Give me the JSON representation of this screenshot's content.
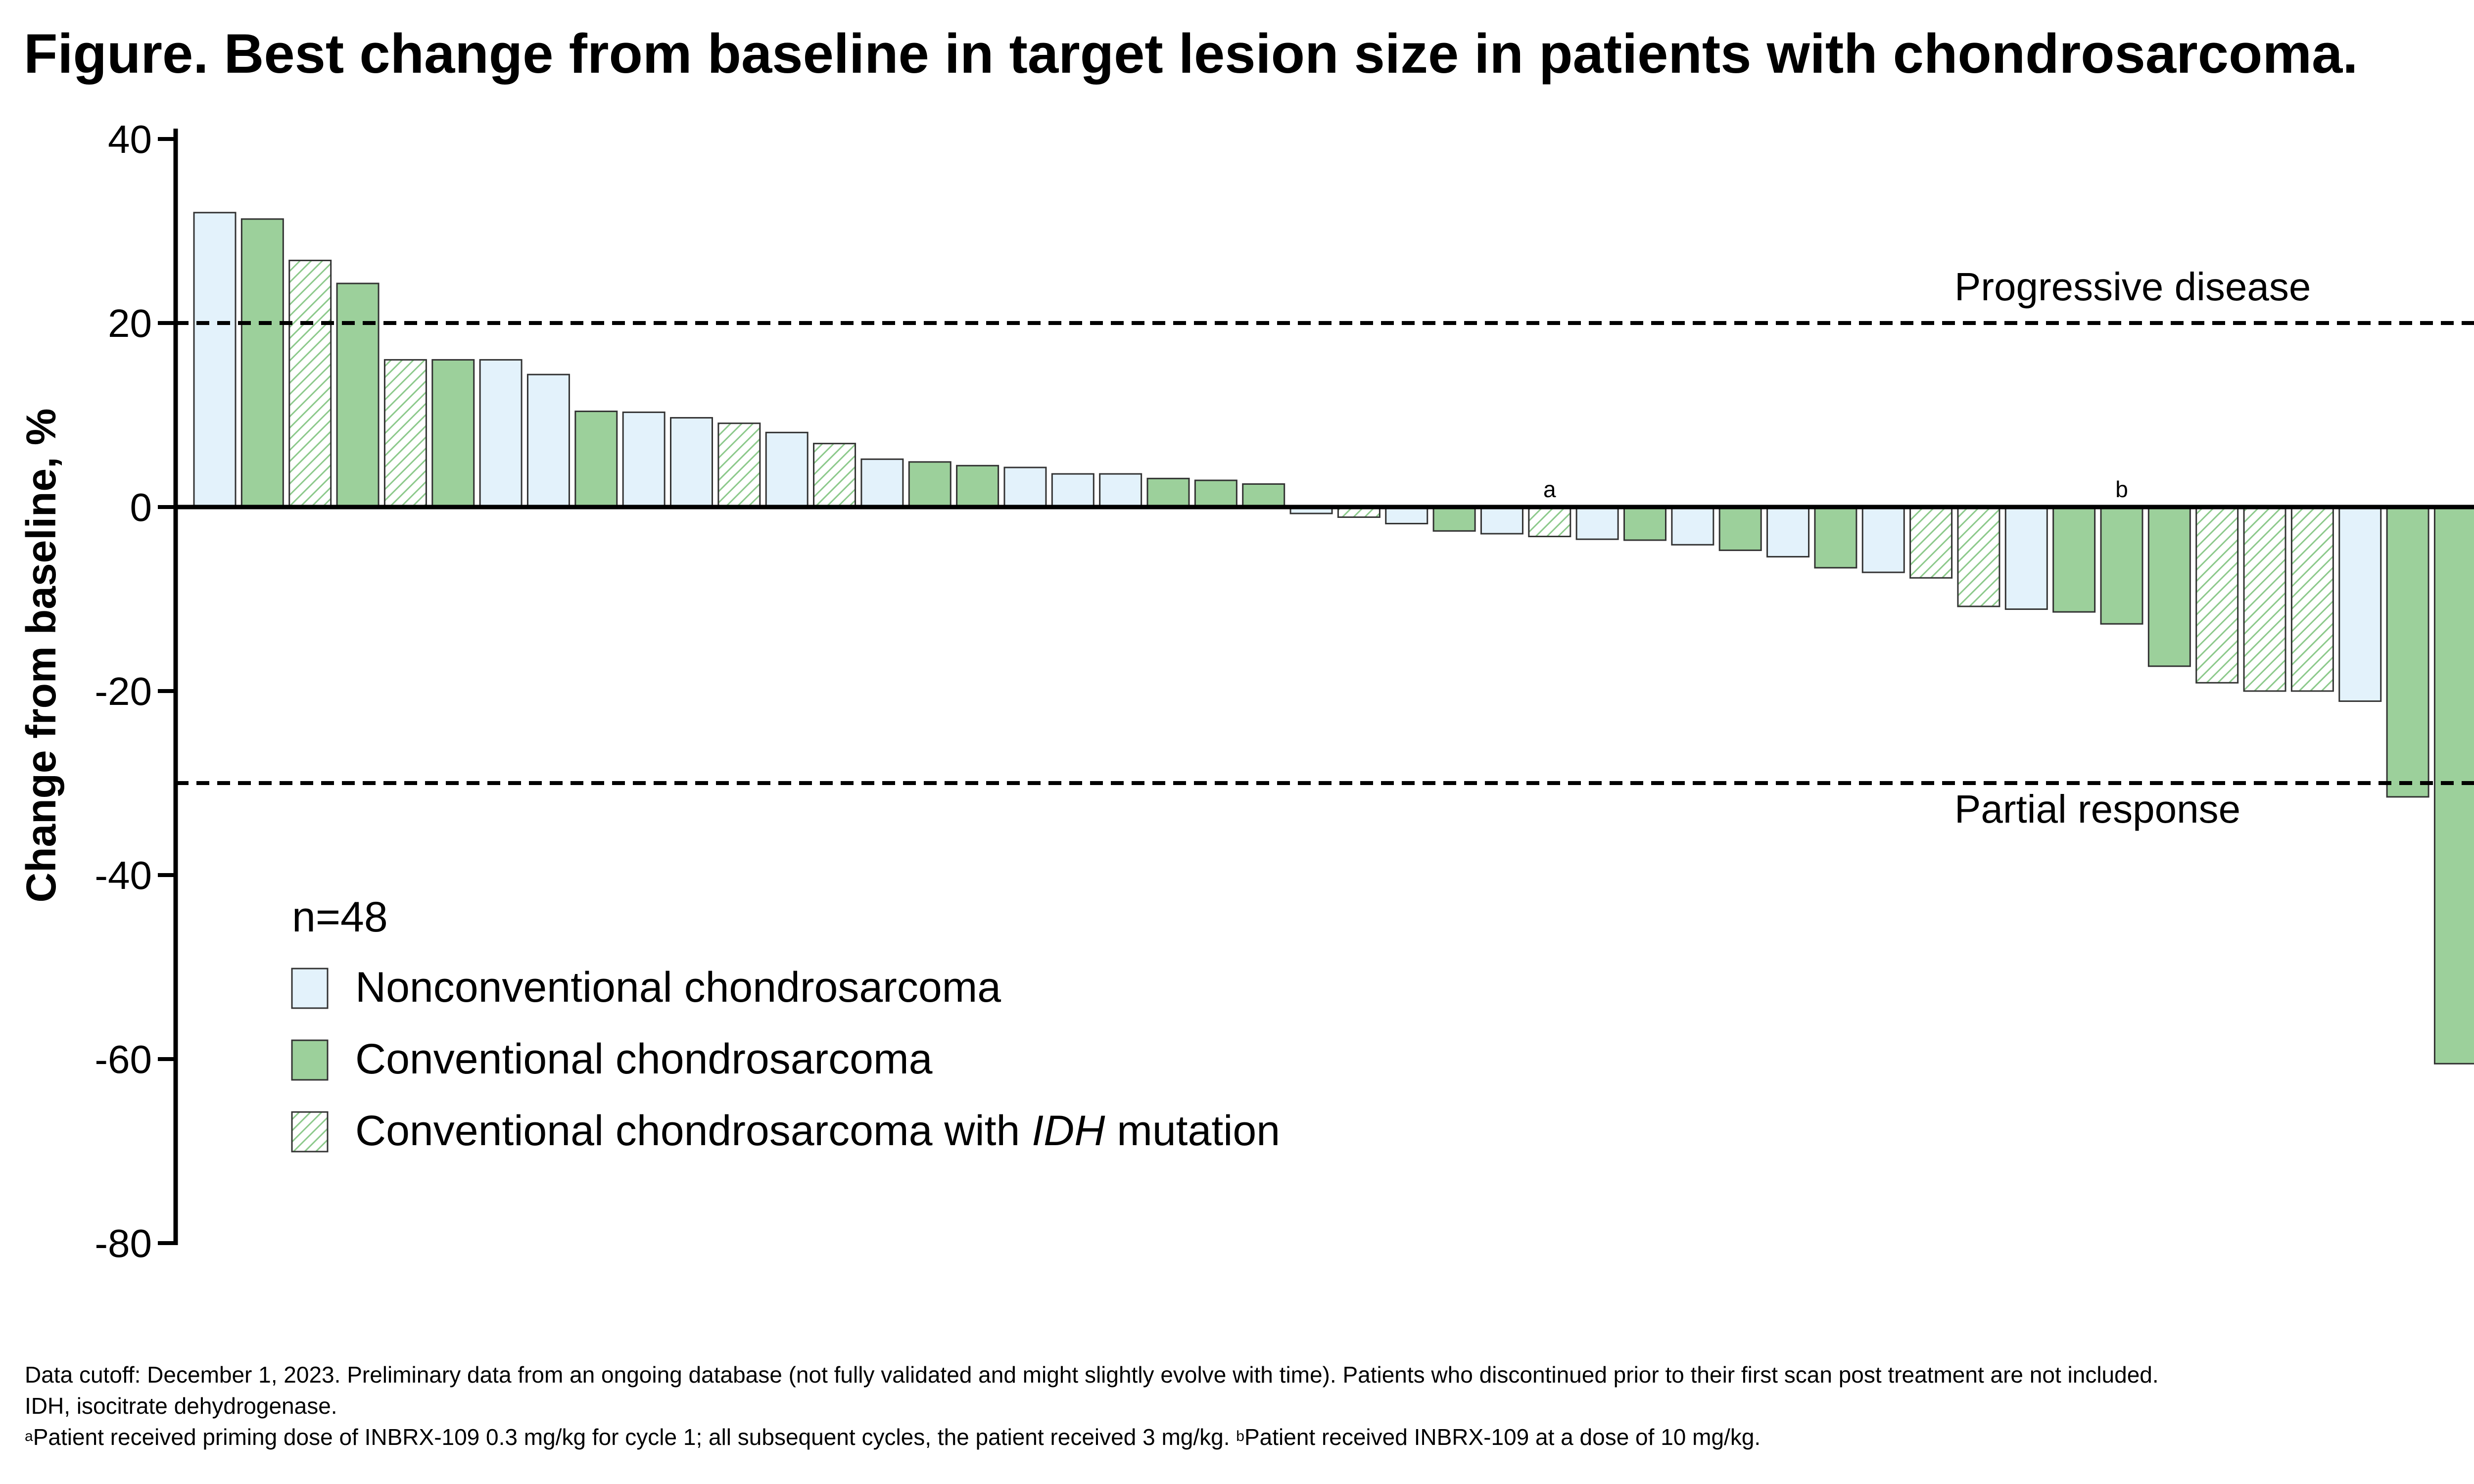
{
  "chart_data": {
    "type": "bar",
    "title": "Figure. Best change from baseline in target lesion size in patients with chondrosarcoma.",
    "ylabel": "Change from baseline, %",
    "xlabel": "",
    "ylim": [
      -80,
      40
    ],
    "yticks": [
      "40",
      "20",
      "0",
      "-20",
      "-40",
      "-60",
      "-80"
    ],
    "grid": false,
    "legend_position": "bottom-left",
    "sample_size_label": "n=48",
    "legend": [
      {
        "key": "nonconventional",
        "label": "Nonconventional chondrosarcoma"
      },
      {
        "key": "conventional",
        "label": "Conventional chondrosarcoma"
      },
      {
        "key": "idh",
        "label_before": "Conventional chondrosarcoma with ",
        "label_italic": "IDH",
        "label_after": " mutation"
      }
    ],
    "reference_lines": [
      {
        "value": 20,
        "label": "Progressive disease"
      },
      {
        "value": -30,
        "label": "Partial response"
      }
    ],
    "colors": {
      "nonconventional": "#e3f2fb",
      "conventional": "#9cd09b",
      "idh_hatch": "#8cc98b",
      "outline": "#333333"
    },
    "values": [
      32,
      31.3,
      26.8,
      24.3,
      16,
      16,
      16,
      14.4,
      10.4,
      10.3,
      9.7,
      9.1,
      8.1,
      6.9,
      5.2,
      4.9,
      4.5,
      4.3,
      3.6,
      3.6,
      3.1,
      2.9,
      2.5,
      -0.7,
      -1.1,
      -1.8,
      -2.6,
      -2.9,
      -3.2,
      -3.5,
      -3.6,
      -4.1,
      -4.7,
      -5.4,
      -6.6,
      -7.1,
      -7.7,
      -10.8,
      -11.1,
      -11.4,
      -12.7,
      -17.3,
      -19.1,
      -20,
      -20,
      -21.1,
      -31.5,
      -60.5
    ],
    "groups": [
      "nonconventional",
      "conventional",
      "idh",
      "conventional",
      "idh",
      "conventional",
      "nonconventional",
      "nonconventional",
      "conventional",
      "nonconventional",
      "nonconventional",
      "idh",
      "nonconventional",
      "idh",
      "nonconventional",
      "conventional",
      "conventional",
      "nonconventional",
      "nonconventional",
      "nonconventional",
      "conventional",
      "conventional",
      "conventional",
      "nonconventional",
      "idh",
      "nonconventional",
      "conventional",
      "nonconventional",
      "idh",
      "nonconventional",
      "conventional",
      "nonconventional",
      "conventional",
      "nonconventional",
      "conventional",
      "nonconventional",
      "idh",
      "idh",
      "nonconventional",
      "conventional",
      "conventional",
      "conventional",
      "idh",
      "idh",
      "idh",
      "nonconventional",
      "conventional",
      "conventional"
    ],
    "annotations": [
      {
        "bar_index": 28,
        "text": "a"
      },
      {
        "bar_index": 40,
        "text": "b"
      }
    ]
  },
  "footnotes": {
    "line1": "Data cutoff: December 1, 2023. Preliminary data from an ongoing database (not fully validated and might slightly evolve with time). Patients who discontinued prior to their first scan post treatment are not included.",
    "line2": "IDH, isocitrate dehydrogenase.",
    "note_a_marker": "a",
    "note_a_text": "Patient received priming dose of INBRX-109 0.3 mg/kg for cycle 1; all subsequent cycles, the patient received 3 mg/kg. ",
    "note_b_marker": "b",
    "note_b_text": "Patient received INBRX-109 at a dose of 10 mg/kg."
  }
}
